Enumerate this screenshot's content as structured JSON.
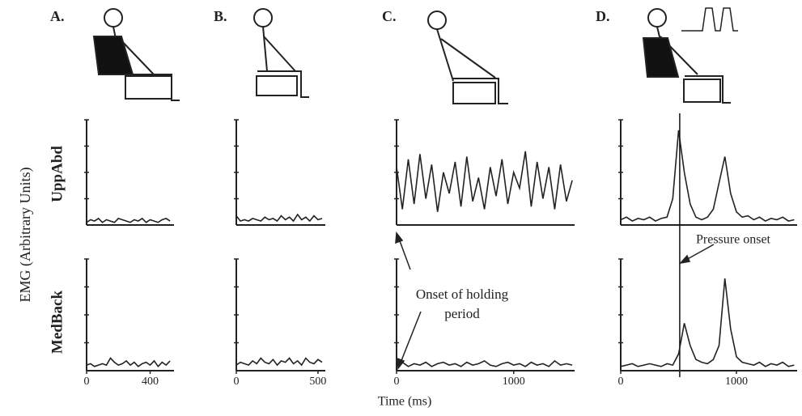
{
  "panel_labels": [
    "A.",
    "B.",
    "C.",
    "D."
  ],
  "row_labels": [
    "UppAbd",
    "MedBack"
  ],
  "y_axis_label": "EMG (Arbitrary Units)",
  "x_axis_label": "Time (ms)",
  "annotations": {
    "holding": "Onset of holding period",
    "pressure": "Pressure onset"
  },
  "chart_data": [
    {
      "type": "line",
      "color": "#222",
      "xlim": [
        0,
        550
      ],
      "ylim": [
        0,
        4
      ],
      "yticks": [
        1,
        2,
        3,
        4
      ],
      "ytick_labels": false,
      "x": [
        0,
        25,
        50,
        75,
        100,
        125,
        150,
        175,
        200,
        225,
        250,
        275,
        300,
        325,
        350,
        375,
        400,
        425,
        450,
        475,
        500,
        525
      ],
      "values": [
        0.1,
        0.2,
        0.15,
        0.25,
        0.1,
        0.2,
        0.15,
        0.1,
        0.25,
        0.2,
        0.15,
        0.1,
        0.2,
        0.15,
        0.25,
        0.1,
        0.2,
        0.15,
        0.1,
        0.2,
        0.25,
        0.15
      ]
    },
    {
      "type": "line",
      "color": "#222",
      "xlim": [
        0,
        545
      ],
      "ylim": [
        0,
        4
      ],
      "yticks": [
        1,
        2,
        3,
        4
      ],
      "ytick_labels": false,
      "x": [
        0,
        25,
        50,
        75,
        100,
        125,
        150,
        175,
        200,
        225,
        250,
        275,
        300,
        325,
        350,
        375,
        400,
        425,
        450,
        475,
        500,
        525
      ],
      "values": [
        0.35,
        0.15,
        0.2,
        0.15,
        0.25,
        0.2,
        0.15,
        0.3,
        0.2,
        0.25,
        0.15,
        0.35,
        0.2,
        0.3,
        0.15,
        0.4,
        0.2,
        0.3,
        0.15,
        0.35,
        0.2,
        0.25
      ]
    },
    {
      "type": "line",
      "color": "#222",
      "xlim": [
        0,
        1520
      ],
      "ylim": [
        0,
        4
      ],
      "yticks": [
        1,
        2,
        3,
        4
      ],
      "ytick_labels": false,
      "x": [
        0,
        50,
        100,
        150,
        200,
        250,
        300,
        350,
        400,
        450,
        500,
        550,
        600,
        650,
        700,
        750,
        800,
        850,
        900,
        950,
        1000,
        1050,
        1100,
        1150,
        1200,
        1250,
        1300,
        1350,
        1400,
        1450,
        1500
      ],
      "values": [
        2.2,
        0.6,
        2.5,
        0.8,
        2.7,
        1.0,
        2.3,
        0.5,
        2.0,
        1.2,
        2.4,
        0.7,
        2.6,
        0.9,
        1.8,
        0.6,
        2.2,
        1.1,
        2.5,
        0.8,
        2.0,
        1.4,
        2.8,
        0.7,
        2.4,
        1.0,
        2.2,
        0.6,
        2.3,
        0.9,
        1.7
      ]
    },
    {
      "type": "line",
      "color": "#222",
      "xlim": [
        0,
        1525
      ],
      "ylim": [
        0,
        4
      ],
      "yticks": [
        1,
        2,
        3,
        4
      ],
      "ytick_labels": false,
      "marker_x": 510,
      "x": [
        0,
        50,
        100,
        150,
        200,
        250,
        300,
        350,
        400,
        450,
        500,
        550,
        600,
        650,
        700,
        750,
        800,
        850,
        900,
        950,
        1000,
        1050,
        1100,
        1150,
        1200,
        1250,
        1300,
        1350,
        1400,
        1450,
        1500
      ],
      "values": [
        0.2,
        0.3,
        0.15,
        0.25,
        0.2,
        0.3,
        0.15,
        0.25,
        0.3,
        1.0,
        3.6,
        2.0,
        0.8,
        0.3,
        0.2,
        0.3,
        0.6,
        1.6,
        2.6,
        1.2,
        0.5,
        0.3,
        0.35,
        0.2,
        0.3,
        0.15,
        0.25,
        0.2,
        0.3,
        0.15,
        0.2
      ]
    },
    {
      "type": "line",
      "color": "#222",
      "xlim": [
        0,
        550
      ],
      "ylim": [
        0,
        4
      ],
      "yticks": [
        1,
        2,
        3,
        4
      ],
      "ytick_labels": false,
      "xticks": [
        0,
        400
      ],
      "x": [
        0,
        25,
        50,
        75,
        100,
        125,
        150,
        175,
        200,
        225,
        250,
        275,
        300,
        325,
        350,
        375,
        400,
        425,
        450,
        475,
        500,
        525
      ],
      "values": [
        0.2,
        0.25,
        0.15,
        0.2,
        0.25,
        0.2,
        0.45,
        0.3,
        0.2,
        0.25,
        0.35,
        0.2,
        0.3,
        0.15,
        0.25,
        0.3,
        0.2,
        0.35,
        0.15,
        0.3,
        0.2,
        0.35
      ]
    },
    {
      "type": "line",
      "color": "#222",
      "xlim": [
        0,
        545
      ],
      "ylim": [
        0,
        4
      ],
      "yticks": [
        1,
        2,
        3,
        4
      ],
      "ytick_labels": false,
      "xticks": [
        0,
        500
      ],
      "x": [
        0,
        25,
        50,
        75,
        100,
        125,
        150,
        175,
        200,
        225,
        250,
        275,
        300,
        325,
        350,
        375,
        400,
        425,
        450,
        475,
        500,
        525
      ],
      "values": [
        0.2,
        0.3,
        0.25,
        0.2,
        0.35,
        0.25,
        0.45,
        0.3,
        0.25,
        0.4,
        0.2,
        0.35,
        0.3,
        0.45,
        0.25,
        0.35,
        0.2,
        0.45,
        0.3,
        0.25,
        0.4,
        0.3
      ]
    },
    {
      "type": "line",
      "color": "#222",
      "xlim": [
        0,
        1520
      ],
      "ylim": [
        0,
        4
      ],
      "yticks": [
        1,
        2,
        3,
        4
      ],
      "ytick_labels": false,
      "xticks": [
        0,
        1000
      ],
      "x": [
        0,
        50,
        100,
        150,
        200,
        250,
        300,
        350,
        400,
        450,
        500,
        550,
        600,
        650,
        700,
        750,
        800,
        850,
        900,
        950,
        1000,
        1050,
        1100,
        1150,
        1200,
        1250,
        1300,
        1350,
        1400,
        1450,
        1500
      ],
      "values": [
        0.2,
        0.3,
        0.15,
        0.25,
        0.2,
        0.3,
        0.15,
        0.25,
        0.3,
        0.2,
        0.25,
        0.15,
        0.3,
        0.2,
        0.25,
        0.35,
        0.2,
        0.15,
        0.25,
        0.3,
        0.2,
        0.25,
        0.15,
        0.3,
        0.2,
        0.25,
        0.15,
        0.35,
        0.2,
        0.25,
        0.2
      ]
    },
    {
      "type": "line",
      "color": "#222",
      "xlim": [
        0,
        1525
      ],
      "ylim": [
        0,
        4
      ],
      "yticks": [
        1,
        2,
        3,
        4
      ],
      "ytick_labels": false,
      "xticks": [
        0,
        1000
      ],
      "x": [
        0,
        50,
        100,
        150,
        200,
        250,
        300,
        350,
        400,
        450,
        500,
        550,
        600,
        650,
        700,
        750,
        800,
        850,
        900,
        950,
        1000,
        1050,
        1100,
        1150,
        1200,
        1250,
        1300,
        1350,
        1400,
        1450,
        1500
      ],
      "values": [
        0.15,
        0.2,
        0.25,
        0.15,
        0.2,
        0.25,
        0.2,
        0.15,
        0.25,
        0.2,
        0.6,
        1.7,
        0.9,
        0.4,
        0.3,
        0.25,
        0.4,
        0.9,
        3.3,
        1.5,
        0.5,
        0.3,
        0.25,
        0.2,
        0.3,
        0.15,
        0.25,
        0.2,
        0.3,
        0.15,
        0.2
      ]
    }
  ]
}
